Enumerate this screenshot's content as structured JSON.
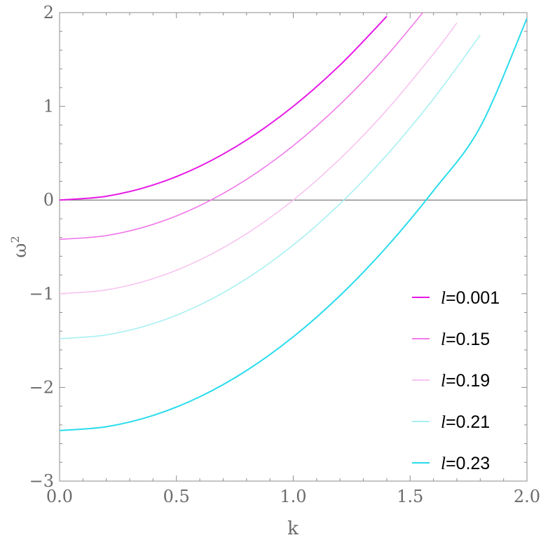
{
  "chart_data": {
    "type": "line",
    "xlabel": "k",
    "ylabel": "ω",
    "ylabel_superscript": "2",
    "xlim": [
      0,
      2
    ],
    "ylim": [
      -3,
      2
    ],
    "x_ticks": [
      0,
      0.5,
      1,
      1.5,
      2
    ],
    "x_tick_labels": [
      "0.0",
      "0.5",
      "1.0",
      "1.5",
      "2.0"
    ],
    "y_ticks": [
      -3,
      -2,
      -1,
      0,
      1,
      2
    ],
    "y_tick_labels": [
      "−3",
      "−2",
      "−1",
      "0",
      "1",
      "2"
    ],
    "grid": false,
    "reference_line_y": 0,
    "legend_position": "lower-right",
    "series": [
      {
        "name": "=0.001",
        "legend_symbol": "l",
        "color": "#e619e6",
        "x": [
          0,
          0.2,
          0.4,
          0.6,
          0.8,
          1.0,
          1.2,
          1.4
        ],
        "y": [
          0,
          0.04,
          0.16,
          0.36,
          0.64,
          1.0,
          1.44,
          1.96
        ]
      },
      {
        "name": "=0.15",
        "legend_symbol": "l",
        "color": "#f07aea",
        "x": [
          0,
          0.2,
          0.4,
          0.6,
          0.8,
          1.0,
          1.2,
          1.4,
          1.6
        ],
        "y": [
          -0.42,
          -0.38,
          -0.26,
          -0.06,
          0.22,
          0.58,
          1.02,
          1.54,
          2.14
        ]
      },
      {
        "name": "=0.19",
        "legend_symbol": "l",
        "color": "#f7c4f0",
        "x": [
          0,
          0.2,
          0.4,
          0.6,
          0.8,
          1.0,
          1.2,
          1.4,
          1.6,
          1.7
        ],
        "y": [
          -1.0,
          -0.96,
          -0.84,
          -0.64,
          -0.36,
          0.0,
          0.44,
          0.96,
          1.56,
          1.89
        ]
      },
      {
        "name": "=0.21",
        "legend_symbol": "l",
        "color": "#a8f0f2",
        "x": [
          0,
          0.2,
          0.4,
          0.6,
          0.8,
          1.0,
          1.2,
          1.4,
          1.6,
          1.8
        ],
        "y": [
          -1.48,
          -1.44,
          -1.32,
          -1.12,
          -0.84,
          -0.48,
          -0.04,
          0.48,
          1.08,
          1.76
        ]
      },
      {
        "name": "=0.23",
        "legend_symbol": "l",
        "color": "#29dcec",
        "x": [
          0,
          0.2,
          0.4,
          0.6,
          0.8,
          1.0,
          1.2,
          1.4,
          1.6,
          1.8,
          2.0
        ],
        "y": [
          -2.46,
          -2.42,
          -2.3,
          -2.1,
          -1.82,
          -1.46,
          -1.02,
          -0.5,
          0.1,
          0.78,
          1.94
        ]
      }
    ]
  }
}
